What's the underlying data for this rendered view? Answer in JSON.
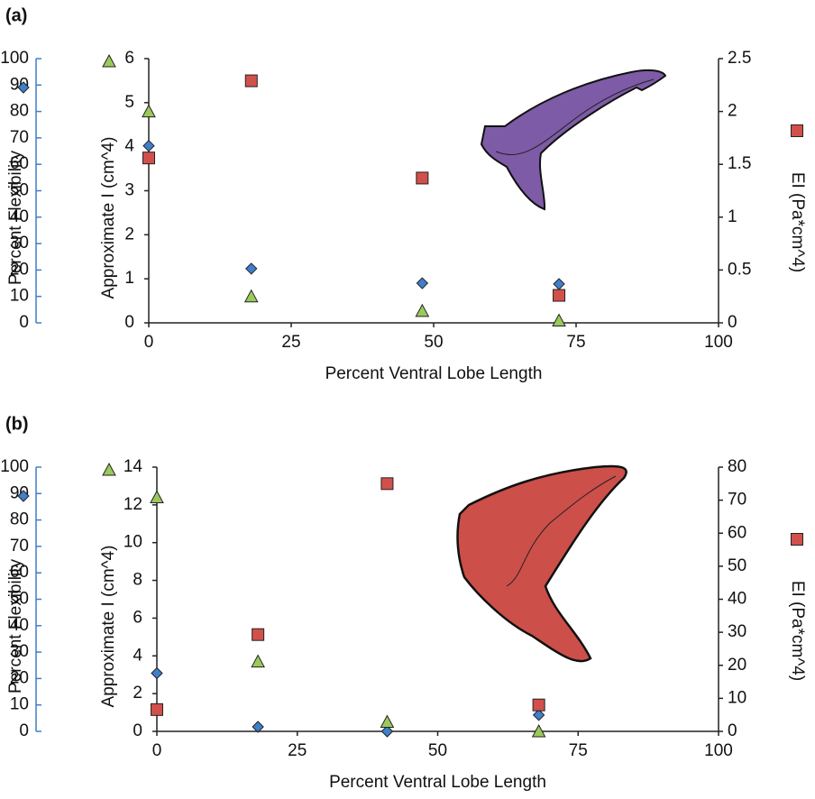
{
  "chart_data": [
    {
      "type": "scatter",
      "panel": "(a)",
      "xlabel": "Percent Ventral Lobe Length",
      "ylabel": "Percent Flexibility",
      "y2label": "Approximate I (cm^4)",
      "y3label": "EI (Pa*cm^4)",
      "xlim": [
        0,
        100
      ],
      "xticks": [
        0,
        25,
        50,
        75,
        100
      ],
      "ylim": [
        0,
        100
      ],
      "yticks": [
        0,
        10,
        20,
        30,
        40,
        50,
        60,
        70,
        80,
        90,
        100
      ],
      "y2lim": [
        0,
        6
      ],
      "y2ticks": [
        0,
        1,
        2,
        3,
        4,
        5,
        6
      ],
      "y3lim": [
        0,
        2.5
      ],
      "y3ticks": [
        0,
        0.5,
        1,
        1.5,
        2,
        2.5
      ],
      "fin_color": "#7d5ba6",
      "series": [
        {
          "axis": "y",
          "marker": "diamond",
          "color": "#3f7fcb",
          "x": [
            0,
            18,
            48,
            72
          ],
          "values": [
            67,
            20.5,
            15,
            14.7
          ]
        },
        {
          "axis": "y2",
          "marker": "triangle",
          "color": "#9bc95b",
          "x": [
            0,
            18,
            48,
            72
          ],
          "values": [
            4.8,
            0.6,
            0.27,
            0.05
          ]
        },
        {
          "axis": "y3",
          "marker": "square",
          "color": "#d2504b",
          "x": [
            0,
            18,
            48,
            72
          ],
          "values": [
            1.56,
            2.29,
            1.37,
            0.26
          ]
        }
      ]
    },
    {
      "type": "scatter",
      "panel": "(b)",
      "xlabel": "Percent Ventral Lobe Length",
      "ylabel": "Percent Flexibility",
      "y2label": "Approximate I (cm^4)",
      "y3label": "EI (Pa*cm^4)",
      "xlim": [
        0,
        100
      ],
      "xticks": [
        0,
        25,
        50,
        75,
        100
      ],
      "ylim": [
        0,
        100
      ],
      "yticks": [
        0,
        10,
        20,
        30,
        40,
        50,
        60,
        70,
        80,
        90,
        100
      ],
      "y2lim": [
        0,
        14
      ],
      "y2ticks": [
        0,
        2,
        4,
        6,
        8,
        10,
        12,
        14
      ],
      "y3lim": [
        0,
        80
      ],
      "y3ticks": [
        0,
        10,
        20,
        30,
        40,
        50,
        60,
        70,
        80
      ],
      "fin_color": "#cc4f4a",
      "series": [
        {
          "axis": "y",
          "marker": "diamond",
          "color": "#3f7fcb",
          "x": [
            0,
            18,
            41,
            68
          ],
          "values": [
            22,
            1.7,
            0,
            6.2
          ]
        },
        {
          "axis": "y2",
          "marker": "triangle",
          "color": "#9bc95b",
          "x": [
            0,
            18,
            41,
            68
          ],
          "values": [
            12.4,
            3.7,
            0.5,
            0
          ]
        },
        {
          "axis": "y3",
          "marker": "square",
          "color": "#d2504b",
          "x": [
            0,
            18,
            41,
            68
          ],
          "values": [
            6.6,
            29.3,
            75,
            8
          ]
        }
      ]
    }
  ]
}
